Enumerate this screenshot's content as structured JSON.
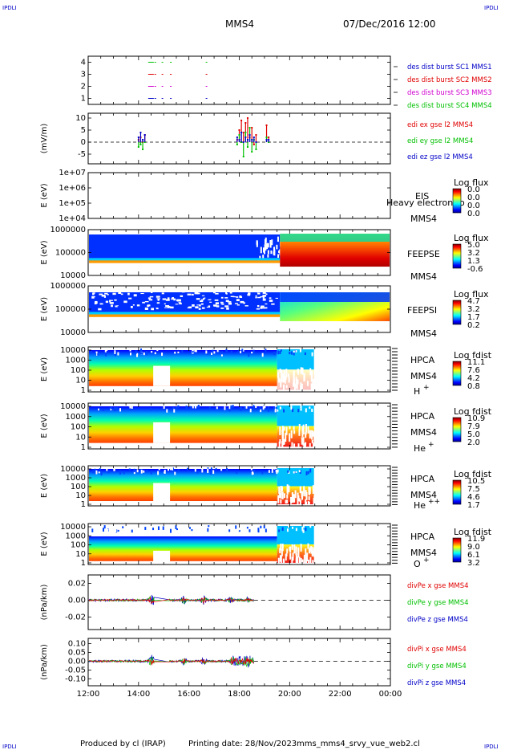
{
  "header": {
    "corner_left": "IPDLI",
    "corner_right": "IPDLI",
    "spacecraft": "MMS4",
    "date": "07/Dec/2016 12:00"
  },
  "footer": {
    "produced": "Produced by cl (IRAP)",
    "printing": "Printing date: 28/Nov/2023",
    "file": "mms_mms4_srvy_vue_web2.cl",
    "corner_left": "IPDLI",
    "corner_right": "IPDLI"
  },
  "colors": {
    "frame": "#000000",
    "blue": "#0000c8",
    "red": "#e00000",
    "magenta": "#d000d0",
    "green": "#00c000",
    "orange": "#ff9900"
  },
  "chart_data": [
    {
      "type": "line",
      "panel": "burst",
      "yticks": [
        "4",
        "3",
        "2",
        "1"
      ],
      "ylim": [
        0.5,
        4.5
      ],
      "x": [
        "14:23",
        "14:38",
        "14:55",
        "15:15",
        "16:40"
      ],
      "series": [
        {
          "name": "des dist burst SC1 MMS1",
          "color": "#0000c8",
          "y": 1
        },
        {
          "name": "des dist burst SC2 MMS2",
          "color": "#e00000",
          "y": 3
        },
        {
          "name": "des dist burst SC3 MMS3",
          "color": "#d000d0",
          "y": 2
        },
        {
          "name": "des dist burst SC4 MMS4",
          "color": "#00c000",
          "y": 4
        }
      ]
    },
    {
      "type": "line",
      "panel": "edi",
      "ylabel": "(mV/m)",
      "yticks": [
        "10",
        "5",
        "0",
        "-5"
      ],
      "ylim": [
        -9,
        12
      ],
      "x": [
        "14:00",
        "14:05",
        "14:10",
        "14:15",
        "17:55",
        "18:00",
        "18:05",
        "18:10",
        "18:15",
        "18:20",
        "18:25",
        "18:30",
        "18:35",
        "18:40",
        "19:05",
        "19:10"
      ],
      "series": [
        {
          "name": "edi ex gse l2 MMS4",
          "color": "#e00000",
          "values": [
            1,
            2,
            0,
            3,
            1,
            5,
            9,
            4,
            8,
            10,
            2,
            6,
            -1,
            3,
            7,
            2
          ]
        },
        {
          "name": "edi ey gse l2 MMS4",
          "color": "#00c000",
          "values": [
            -2,
            -1,
            -3,
            0,
            -1,
            3,
            0,
            -6,
            4,
            -2,
            6,
            -4,
            1,
            -3,
            2,
            0
          ]
        },
        {
          "name": "edi ez gse l2 MMS4",
          "color": "#0000c8",
          "values": [
            2,
            4,
            1,
            3,
            2,
            1,
            4,
            0,
            2,
            1,
            3,
            1,
            2,
            0,
            1,
            1
          ]
        }
      ]
    },
    {
      "type": "heatmap",
      "panel": "eis",
      "ylabel": "E (eV)",
      "yticks": [
        "1e+07",
        "1e+06",
        "1e+05",
        "1e+04"
      ],
      "instrument": "EIS",
      "subtitle": "Heavy electron to",
      "sc": "MMS4",
      "cbar_title": "Log flux",
      "cbar_ticks": [
        "0.0",
        "0.0",
        "0.0",
        "0.0"
      ]
    },
    {
      "type": "heatmap",
      "panel": "feeps-e",
      "ylabel": "E (eV)",
      "yticks": [
        "1000000",
        "100000",
        "10000"
      ],
      "instrument": "FEEPSE",
      "sc": "MMS4",
      "cbar_title": "Log flux",
      "cbar_ticks": [
        "5.0",
        "3.2",
        "1.3",
        "-0.6"
      ]
    },
    {
      "type": "heatmap",
      "panel": "feeps-i",
      "ylabel": "E (eV)",
      "yticks": [
        "1000000",
        "100000",
        "10000"
      ],
      "instrument": "FEEPSI",
      "sc": "MMS4",
      "cbar_title": "Log flux",
      "cbar_ticks": [
        "4.7",
        "3.2",
        "1.7",
        "0.2"
      ]
    },
    {
      "type": "heatmap",
      "panel": "hpca-h",
      "ylabel": "E (eV)",
      "yticks": [
        "10000",
        "1000",
        "100",
        "10",
        "1"
      ],
      "instrument": "HPCA",
      "sc": "MMS4",
      "species": "H",
      "species_sup": "+",
      "cbar_title": "Log fdist",
      "cbar_ticks": [
        "11.1",
        "7.6",
        "4.2",
        "0.8"
      ]
    },
    {
      "type": "heatmap",
      "panel": "hpca-he",
      "ylabel": "E (eV)",
      "yticks": [
        "10000",
        "1000",
        "100",
        "10",
        "1"
      ],
      "instrument": "HPCA",
      "sc": "MMS4",
      "species": "He",
      "species_sup": "+",
      "cbar_title": "Log fdist",
      "cbar_ticks": [
        "10.9",
        "7.9",
        "5.0",
        "2.0"
      ]
    },
    {
      "type": "heatmap",
      "panel": "hpca-hepp",
      "ylabel": "E (eV)",
      "yticks": [
        "10000",
        "1000",
        "100",
        "10",
        "1"
      ],
      "instrument": "HPCA",
      "sc": "MMS4",
      "species": "He",
      "species_sup": "++",
      "cbar_title": "Log fdist",
      "cbar_ticks": [
        "10.5",
        "7.5",
        "4.6",
        "1.7"
      ]
    },
    {
      "type": "heatmap",
      "panel": "hpca-o",
      "ylabel": "E (eV)",
      "yticks": [
        "10000",
        "1000",
        "100",
        "10",
        "1"
      ],
      "instrument": "HPCA",
      "sc": "MMS4",
      "species": "O",
      "species_sup": "+",
      "cbar_title": "Log fdist",
      "cbar_ticks": [
        "11.9",
        "9.0",
        "6.1",
        "3.2"
      ]
    },
    {
      "type": "line",
      "panel": "divpe",
      "ylabel": "(nPa/km)",
      "yticks": [
        "0.02",
        "0.00",
        "-0.02"
      ],
      "ylim": [
        -0.035,
        0.03
      ],
      "series": [
        {
          "name": "divPe x gse MMS4",
          "color": "#e00000"
        },
        {
          "name": "divPe y gse MMS4",
          "color": "#00c000"
        },
        {
          "name": "divPe z gse MMS4",
          "color": "#0000c8"
        }
      ]
    },
    {
      "type": "line",
      "panel": "divpi",
      "ylabel": "(nPa/km)",
      "yticks": [
        "0.10",
        "0.05",
        "0.00",
        "-0.05",
        "-0.10"
      ],
      "ylim": [
        -0.14,
        0.13
      ],
      "series": [
        {
          "name": "divPi x gse MMS4",
          "color": "#e00000"
        },
        {
          "name": "divPi y gse MMS4",
          "color": "#00c000"
        },
        {
          "name": "divPi z gse MMS4",
          "color": "#0000c8"
        }
      ]
    }
  ],
  "xaxis": {
    "ticks": [
      "12:00",
      "14:00",
      "16:00",
      "18:00",
      "20:00",
      "22:00",
      "00:00"
    ]
  }
}
